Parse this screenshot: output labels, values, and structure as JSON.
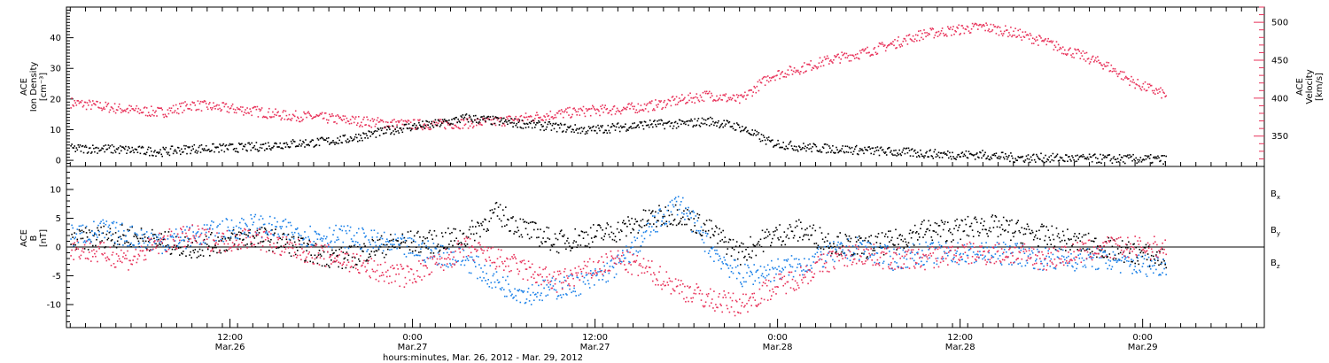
{
  "chart_data": [
    {
      "type": "scatter",
      "panel": "top",
      "ylabel": [
        "ACE",
        "Ion Density",
        "[cm⁻³]"
      ],
      "y2label": [
        "ACE",
        "Velocity",
        "[km/s]"
      ],
      "ylim": [
        -2,
        50
      ],
      "y2lim": [
        310,
        520
      ],
      "yticks": [
        0,
        10,
        20,
        30,
        40
      ],
      "y2ticks": [
        350,
        400,
        450,
        500
      ],
      "series": [
        {
          "axis": "left",
          "color": "#000000",
          "points": [
            [
              0,
              4
            ],
            [
              2,
              4
            ],
            [
              4,
              3.5
            ],
            [
              6,
              3
            ],
            [
              8,
              4
            ],
            [
              10,
              4.2
            ],
            [
              12,
              4.5
            ],
            [
              14,
              5.5
            ],
            [
              16,
              6
            ],
            [
              18,
              7
            ],
            [
              20,
              9
            ],
            [
              22,
              11
            ],
            [
              24,
              12
            ],
            [
              26,
              14
            ],
            [
              28,
              13
            ],
            [
              30,
              12
            ],
            [
              32,
              11
            ],
            [
              34,
              10
            ],
            [
              36,
              11
            ],
            [
              38,
              12
            ],
            [
              40,
              12
            ],
            [
              42,
              13
            ],
            [
              44,
              11
            ],
            [
              46,
              6
            ],
            [
              48,
              4.5
            ],
            [
              50,
              4
            ],
            [
              52,
              3.5
            ],
            [
              54,
              3
            ],
            [
              56,
              2.5
            ],
            [
              58,
              2
            ],
            [
              60,
              2
            ],
            [
              62,
              1
            ],
            [
              64,
              1
            ],
            [
              66,
              0.8
            ],
            [
              68,
              0.7
            ],
            [
              70,
              0.6
            ],
            [
              72,
              0.5
            ]
          ]
        },
        {
          "axis": "right",
          "color": "#e8325a",
          "points": [
            [
              0,
              395
            ],
            [
              2,
              390
            ],
            [
              4,
              385
            ],
            [
              6,
              382
            ],
            [
              8,
              392
            ],
            [
              10,
              388
            ],
            [
              12,
              384
            ],
            [
              14,
              378
            ],
            [
              16,
              376
            ],
            [
              18,
              372
            ],
            [
              20,
              369
            ],
            [
              22,
              366
            ],
            [
              24,
              366
            ],
            [
              26,
              368
            ],
            [
              28,
              370
            ],
            [
              30,
              375
            ],
            [
              32,
              380
            ],
            [
              34,
              384
            ],
            [
              36,
              386
            ],
            [
              38,
              390
            ],
            [
              40,
              398
            ],
            [
              42,
              405
            ],
            [
              44,
              398
            ],
            [
              46,
              430
            ],
            [
              48,
              440
            ],
            [
              50,
              452
            ],
            [
              52,
              460
            ],
            [
              54,
              472
            ],
            [
              56,
              485
            ],
            [
              58,
              490
            ],
            [
              60,
              495
            ],
            [
              62,
              487
            ],
            [
              64,
              475
            ],
            [
              66,
              460
            ],
            [
              68,
              445
            ],
            [
              70,
              420
            ],
            [
              72,
              405
            ]
          ]
        }
      ]
    },
    {
      "type": "scatter",
      "panel": "bottom",
      "ylabel": [
        "ACE",
        "B",
        "[nT]"
      ],
      "ylim": [
        -14,
        14
      ],
      "yticks": [
        -10,
        -5,
        0,
        5,
        10
      ],
      "hline": 0,
      "xlabel": "hours:minutes, Mar. 26, 2012 - Mar. 29, 2012",
      "xlim": [
        -0.25,
        78.5
      ],
      "xticks": [
        {
          "x": 10.5,
          "time": "12:00",
          "date": "Mar.26"
        },
        {
          "x": 22.5,
          "time": "0:00",
          "date": "Mar.27"
        },
        {
          "x": 34.5,
          "time": "12:00",
          "date": "Mar.27"
        },
        {
          "x": 46.5,
          "time": "0:00",
          "date": "Mar.28"
        },
        {
          "x": 58.5,
          "time": "12:00",
          "date": "Mar.28"
        },
        {
          "x": 70.5,
          "time": "0:00",
          "date": "Mar.29"
        }
      ],
      "series": [
        {
          "name": "Bx",
          "color": "#000000",
          "points": [
            [
              0,
              1
            ],
            [
              2,
              2
            ],
            [
              4,
              2
            ],
            [
              6,
              1
            ],
            [
              8,
              0
            ],
            [
              10,
              1
            ],
            [
              12,
              2
            ],
            [
              14,
              1
            ],
            [
              16,
              -1
            ],
            [
              18,
              -2
            ],
            [
              20,
              0
            ],
            [
              22,
              1
            ],
            [
              24,
              1
            ],
            [
              26,
              2
            ],
            [
              28,
              6
            ],
            [
              30,
              3
            ],
            [
              32,
              1
            ],
            [
              34,
              2
            ],
            [
              36,
              3
            ],
            [
              38,
              5
            ],
            [
              40,
              6
            ],
            [
              42,
              3
            ],
            [
              44,
              -1
            ],
            [
              46,
              2
            ],
            [
              48,
              3
            ],
            [
              50,
              1
            ],
            [
              52,
              0
            ],
            [
              54,
              1
            ],
            [
              56,
              3
            ],
            [
              58,
              3
            ],
            [
              60,
              4
            ],
            [
              62,
              3
            ],
            [
              64,
              2
            ],
            [
              66,
              1
            ],
            [
              68,
              0
            ],
            [
              70,
              -1
            ],
            [
              72,
              -2
            ]
          ]
        },
        {
          "name": "By",
          "color": "#1a80e8",
          "points": [
            [
              0,
              2
            ],
            [
              2,
              3
            ],
            [
              4,
              2
            ],
            [
              6,
              1
            ],
            [
              8,
              2
            ],
            [
              10,
              3
            ],
            [
              12,
              4
            ],
            [
              14,
              3
            ],
            [
              16,
              2
            ],
            [
              18,
              2
            ],
            [
              20,
              1
            ],
            [
              22,
              0
            ],
            [
              24,
              -1
            ],
            [
              26,
              -2
            ],
            [
              28,
              -6
            ],
            [
              30,
              -8
            ],
            [
              32,
              -7
            ],
            [
              34,
              -6
            ],
            [
              36,
              -3
            ],
            [
              38,
              3
            ],
            [
              40,
              8
            ],
            [
              42,
              0
            ],
            [
              44,
              -5
            ],
            [
              46,
              -4
            ],
            [
              48,
              -3
            ],
            [
              50,
              -1
            ],
            [
              52,
              0
            ],
            [
              54,
              -2
            ],
            [
              56,
              -1
            ],
            [
              58,
              -1
            ],
            [
              60,
              -1
            ],
            [
              62,
              -1
            ],
            [
              64,
              -2
            ],
            [
              66,
              -2
            ],
            [
              68,
              -2
            ],
            [
              70,
              -3
            ],
            [
              72,
              -3
            ]
          ]
        },
        {
          "name": "Bz",
          "color": "#e8325a",
          "points": [
            [
              0,
              0
            ],
            [
              2,
              -1
            ],
            [
              4,
              -2
            ],
            [
              6,
              1
            ],
            [
              8,
              2
            ],
            [
              10,
              1
            ],
            [
              12,
              2
            ],
            [
              14,
              0
            ],
            [
              16,
              -1
            ],
            [
              18,
              -2
            ],
            [
              20,
              -4
            ],
            [
              22,
              -5
            ],
            [
              24,
              -3
            ],
            [
              26,
              0
            ],
            [
              28,
              -2
            ],
            [
              30,
              -4
            ],
            [
              32,
              -6
            ],
            [
              34,
              -4
            ],
            [
              36,
              -2
            ],
            [
              38,
              -4
            ],
            [
              40,
              -7
            ],
            [
              42,
              -9
            ],
            [
              44,
              -10
            ],
            [
              46,
              -7
            ],
            [
              48,
              -5
            ],
            [
              50,
              -2
            ],
            [
              52,
              -1
            ],
            [
              54,
              -2
            ],
            [
              56,
              -2
            ],
            [
              58,
              -1
            ],
            [
              60,
              -1
            ],
            [
              62,
              -1
            ],
            [
              64,
              -2
            ],
            [
              66,
              -1
            ],
            [
              68,
              0
            ],
            [
              70,
              0
            ],
            [
              72,
              0
            ]
          ]
        }
      ]
    }
  ],
  "legend": [
    {
      "name": "Bx",
      "base": "B",
      "sub": "x",
      "color": "#000000"
    },
    {
      "name": "By",
      "base": "B",
      "sub": "y",
      "color": "#1a80e8"
    },
    {
      "name": "Bz",
      "base": "B",
      "sub": "z",
      "color": "#e8325a"
    }
  ]
}
